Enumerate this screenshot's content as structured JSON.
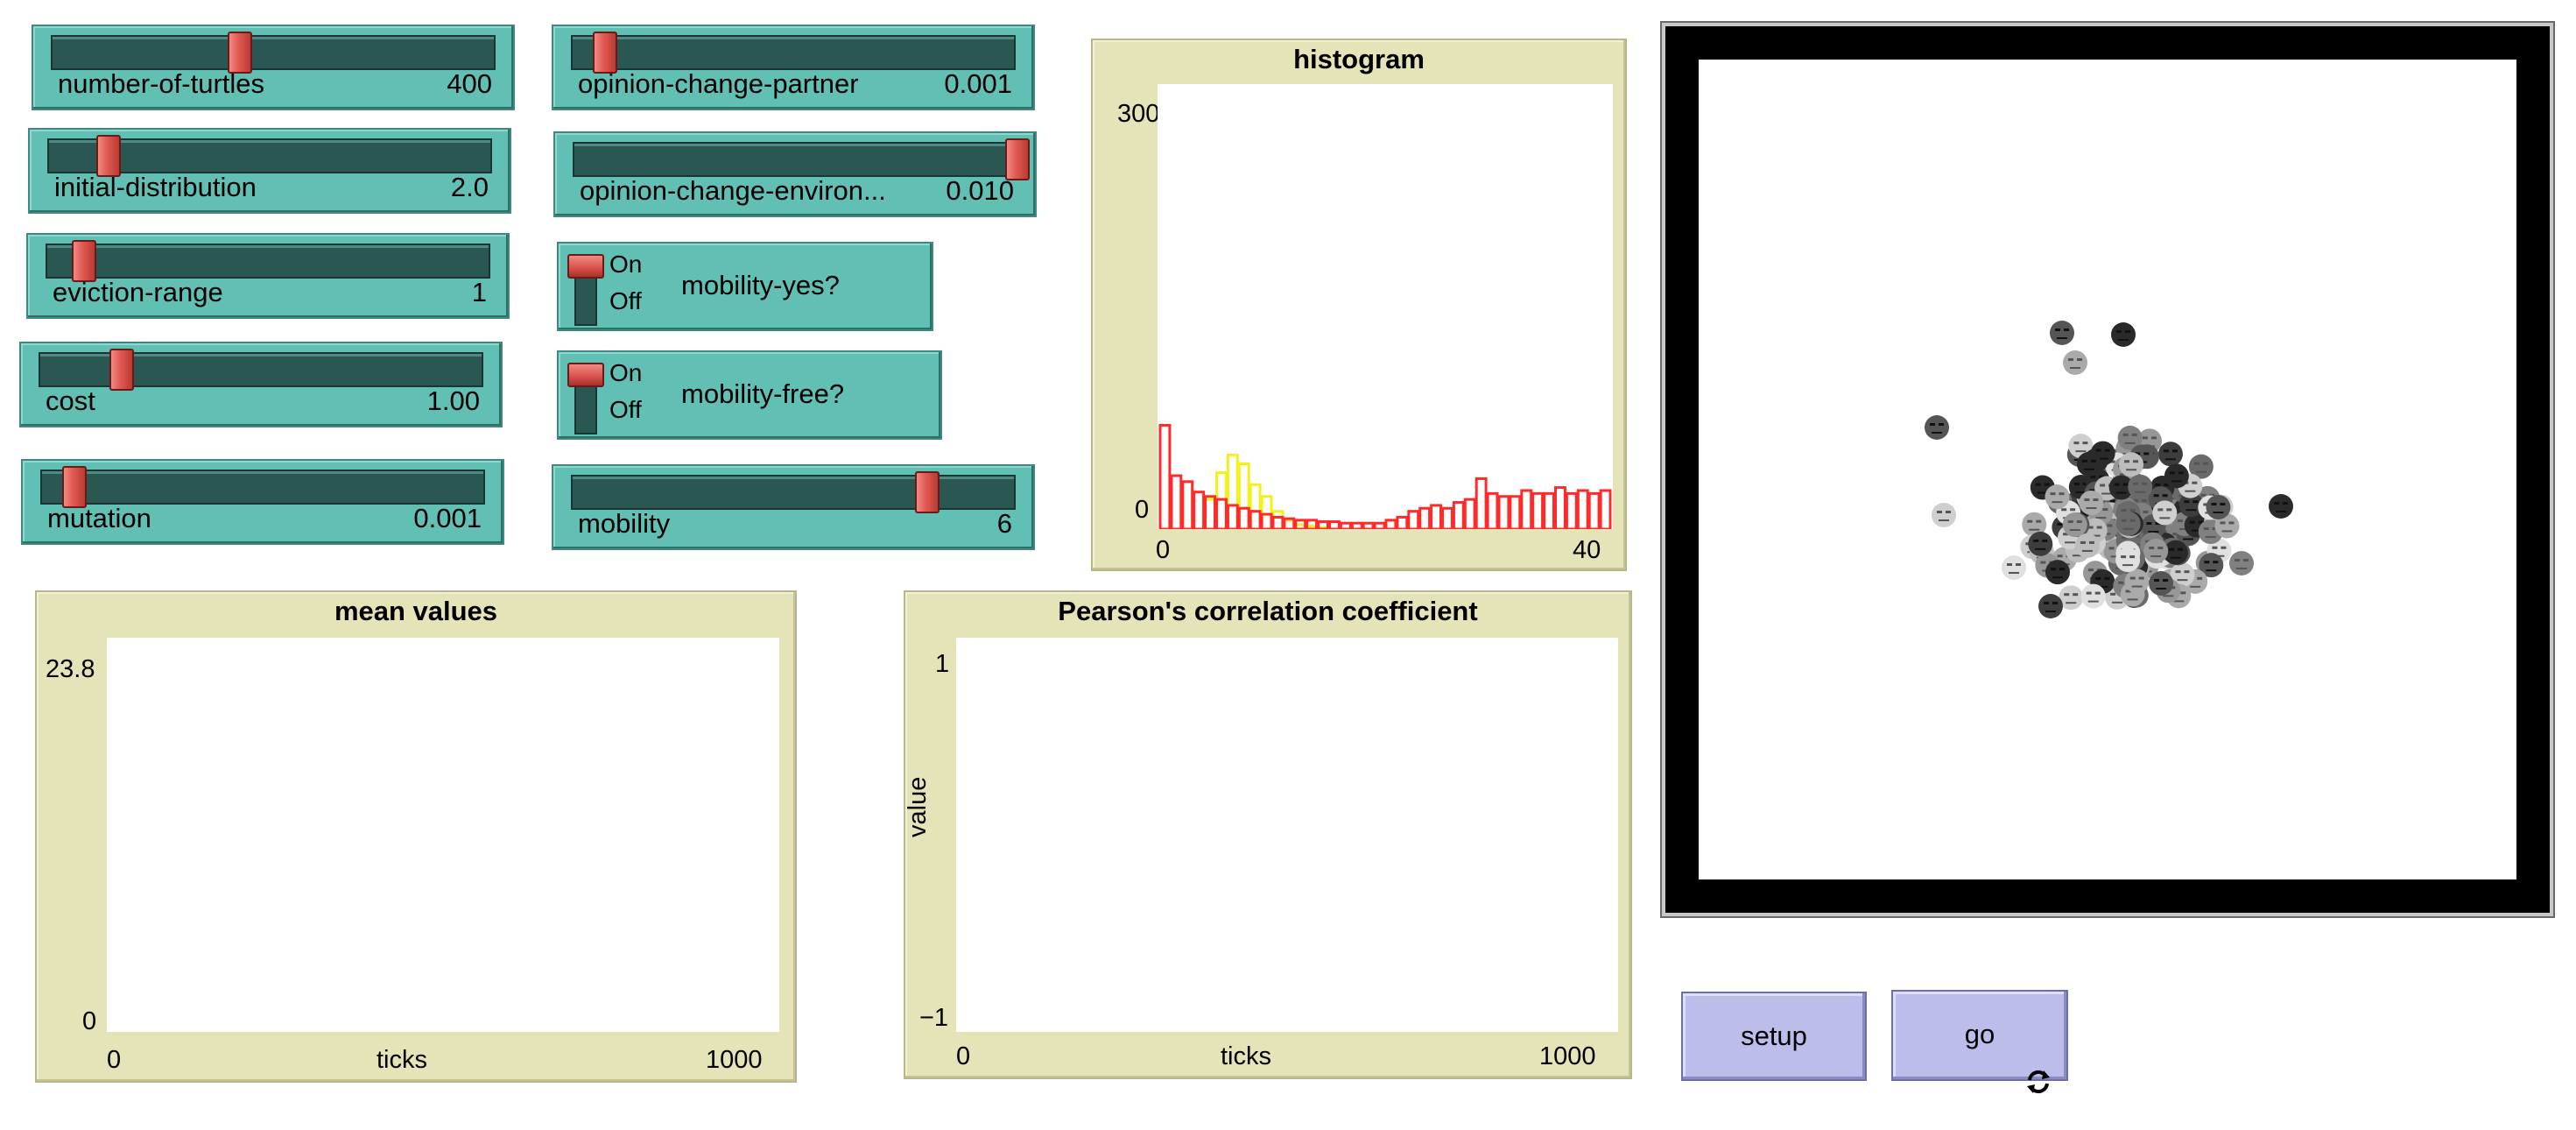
{
  "sliders": [
    {
      "name": "number-of-turtles",
      "label": "number-of-turtles",
      "value": "400",
      "fraction": 0.42
    },
    {
      "name": "initial-distribution",
      "label": "initial-distribution",
      "value": "2.0",
      "fraction": 0.13
    },
    {
      "name": "eviction-range",
      "label": "eviction-range",
      "value": "1",
      "fraction": 0.08
    },
    {
      "name": "cost",
      "label": "cost",
      "value": "1.00",
      "fraction": 0.18
    },
    {
      "name": "mutation",
      "label": "mutation",
      "value": "0.001",
      "fraction": 0.07
    },
    {
      "name": "opinion-change-partner",
      "label": "opinion-change-partner",
      "value": "0.001",
      "fraction": 0.07
    },
    {
      "name": "opinion-change-environment",
      "label": "opinion-change-environ...",
      "value": "0.010",
      "fraction": 1.0
    },
    {
      "name": "mobility",
      "label": "mobility",
      "value": "6",
      "fraction": 0.8
    }
  ],
  "switches": [
    {
      "name": "mobility-yes",
      "label": "mobility-yes?",
      "on_text": "On",
      "off_text": "Off",
      "state": "on"
    },
    {
      "name": "mobility-free",
      "label": "mobility-free?",
      "on_text": "On",
      "off_text": "Off",
      "state": "on"
    }
  ],
  "histogram": {
    "title": "histogram",
    "ymax": "300",
    "ymin": "0",
    "xmin": "0",
    "xmax": "40",
    "colors": {
      "red": "#ff2a2a",
      "yellow": "#f2f21a"
    }
  },
  "mean_plot": {
    "title": "mean values",
    "ymax": "23.8",
    "ymin": "0",
    "xmin": "0",
    "xmax": "1000",
    "xlabel": "ticks"
  },
  "pearson_plot": {
    "title": "Pearson's correlation coefficient",
    "ymax": "1",
    "ymin": "−1",
    "xmin": "0",
    "xmax": "1000",
    "xlabel": "ticks",
    "ylabel": "value"
  },
  "buttons": {
    "setup": "setup",
    "go": "go",
    "go_icon": "forever-loop-icon"
  },
  "chart_data": [
    {
      "type": "bar",
      "title": "histogram",
      "xlim": [
        0,
        40
      ],
      "ylim": [
        0,
        300
      ],
      "grid": false,
      "series": [
        {
          "color": "#ff2a2a",
          "values": [
            70,
            36,
            32,
            25,
            22,
            20,
            16,
            14,
            12,
            10,
            8,
            7,
            6,
            6,
            5,
            5,
            4,
            4,
            4,
            4,
            6,
            8,
            12,
            14,
            16,
            14,
            18,
            20,
            34,
            24,
            22,
            22,
            26,
            24,
            24,
            28,
            24,
            26,
            24,
            26
          ]
        },
        {
          "color": "#f2f21a",
          "values": [
            0,
            0,
            0,
            0,
            20,
            38,
            50,
            44,
            30,
            22,
            12,
            6,
            3,
            2,
            1,
            0,
            0,
            0,
            0,
            0,
            0,
            0,
            0,
            0,
            0,
            0,
            0,
            0,
            0,
            0,
            0,
            0,
            0,
            0,
            0,
            0,
            0,
            0,
            0,
            0
          ]
        }
      ]
    },
    {
      "type": "line",
      "title": "mean values",
      "xlabel": "ticks",
      "xlim": [
        0,
        1000
      ],
      "ylim": [
        0,
        23.8
      ],
      "series": []
    },
    {
      "type": "line",
      "title": "Pearson's correlation coefficient",
      "xlabel": "ticks",
      "ylabel": "value",
      "xlim": [
        0,
        1000
      ],
      "ylim": [
        -1,
        1
      ],
      "series": []
    }
  ]
}
